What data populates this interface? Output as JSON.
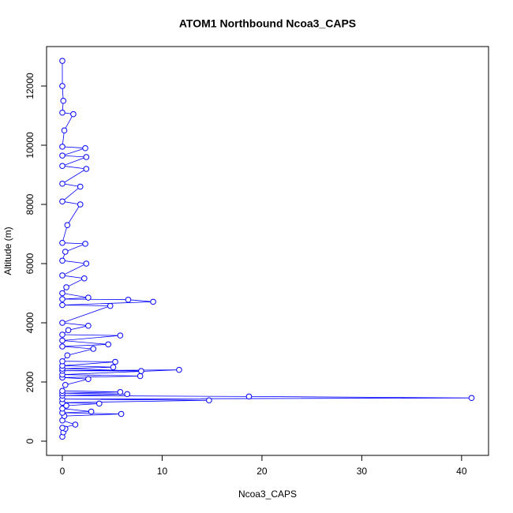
{
  "chart_data": {
    "type": "line",
    "title": "ATOM1 Northbound Ncoa3_CAPS",
    "x_label": "Ncoa3_CAPS",
    "y_label": "Altitude (m)",
    "color": "#0000ff",
    "markers": true,
    "x": [
      0,
      0.1,
      0.3,
      0,
      1.3,
      0,
      0.2,
      5.9,
      0,
      2.9,
      0,
      0.4,
      3.7,
      0,
      14.7,
      0,
      41,
      18.7,
      0,
      6.5,
      0,
      5.8,
      0,
      0.3,
      2.6,
      0,
      7.8,
      0,
      11.7,
      0,
      7.9,
      0,
      5.1,
      0,
      5.3,
      0,
      0.5,
      3.1,
      0,
      4.6,
      0,
      5.8,
      0,
      0.6,
      2.6,
      0,
      4.8,
      0,
      9.1,
      6.6,
      0,
      2.6,
      0,
      0.4,
      2.2,
      0,
      2.4,
      0,
      0.3,
      2.3,
      0,
      0.5,
      1.8,
      0,
      1.8,
      0,
      2.4,
      0,
      2.4,
      0,
      2.3,
      0,
      0.2,
      1.1,
      0,
      0.1,
      0,
      0
    ],
    "values": [
      150,
      300,
      420,
      450,
      560,
      700,
      850,
      920,
      960,
      1000,
      1100,
      1200,
      1270,
      1300,
      1380,
      1420,
      1460,
      1510,
      1540,
      1590,
      1620,
      1660,
      1700,
      1900,
      2100,
      2150,
      2200,
      2250,
      2410,
      2380,
      2370,
      2450,
      2500,
      2550,
      2680,
      2700,
      2900,
      3120,
      3200,
      3270,
      3400,
      3570,
      3600,
      3750,
      3900,
      4000,
      4570,
      4600,
      4710,
      4780,
      4800,
      4850,
      5000,
      5200,
      5500,
      5600,
      6000,
      6100,
      6400,
      6670,
      6700,
      7300,
      8000,
      8100,
      8600,
      8700,
      9200,
      9300,
      9600,
      9650,
      9900,
      9950,
      10500,
      11050,
      11100,
      11500,
      12000,
      12850
    ],
    "xlim": [
      -1.58,
      42.7
    ],
    "ylim": [
      -480,
      13333
    ],
    "xticks": [
      0,
      10,
      20,
      30,
      40
    ],
    "yticks": [
      0,
      2000,
      4000,
      6000,
      8000,
      10000,
      12000
    ]
  }
}
